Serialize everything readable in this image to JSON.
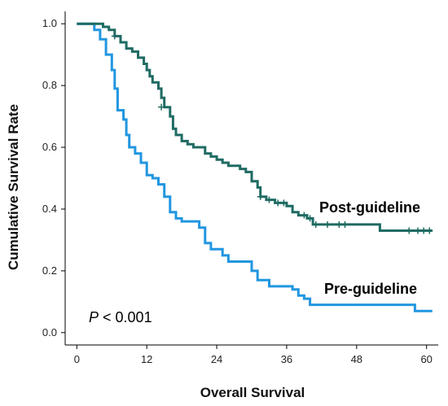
{
  "chart_data": {
    "type": "line",
    "step": true,
    "xlabel": "Overall Survival",
    "ylabel": "Cumulative Survival Rate",
    "xlim": [
      -2,
      62
    ],
    "ylim": [
      -0.04,
      1.04
    ],
    "xticks": [
      0,
      12,
      24,
      36,
      48,
      60
    ],
    "yticks": [
      0.0,
      0.2,
      0.4,
      0.6,
      0.8,
      1.0
    ],
    "grid": false,
    "annotation": {
      "prefix": "P",
      "rest": " < 0.001"
    },
    "series": [
      {
        "name": "Post-guideline",
        "color": "#1f6b63",
        "points": [
          [
            0,
            1.0
          ],
          [
            4.5,
            1.0
          ],
          [
            4.5,
            0.99
          ],
          [
            5.5,
            0.99
          ],
          [
            5.5,
            0.98
          ],
          [
            6.5,
            0.98
          ],
          [
            6.5,
            0.96
          ],
          [
            7.5,
            0.96
          ],
          [
            7.5,
            0.94
          ],
          [
            8.5,
            0.94
          ],
          [
            8.5,
            0.92
          ],
          [
            9.5,
            0.92
          ],
          [
            9.5,
            0.91
          ],
          [
            10.5,
            0.91
          ],
          [
            10.5,
            0.89
          ],
          [
            11.5,
            0.89
          ],
          [
            11.5,
            0.87
          ],
          [
            12.0,
            0.87
          ],
          [
            12.0,
            0.85
          ],
          [
            12.5,
            0.85
          ],
          [
            12.5,
            0.83
          ],
          [
            13.0,
            0.83
          ],
          [
            13.0,
            0.81
          ],
          [
            14.0,
            0.81
          ],
          [
            14.0,
            0.79
          ],
          [
            14.5,
            0.79
          ],
          [
            14.5,
            0.76
          ],
          [
            15.0,
            0.76
          ],
          [
            15.0,
            0.73
          ],
          [
            16.0,
            0.73
          ],
          [
            16.0,
            0.7
          ],
          [
            16.5,
            0.7
          ],
          [
            16.5,
            0.66
          ],
          [
            17.0,
            0.66
          ],
          [
            17.0,
            0.64
          ],
          [
            18.0,
            0.64
          ],
          [
            18.0,
            0.62
          ],
          [
            19.0,
            0.62
          ],
          [
            19.0,
            0.61
          ],
          [
            20.0,
            0.61
          ],
          [
            20.0,
            0.6
          ],
          [
            22.0,
            0.6
          ],
          [
            22.0,
            0.58
          ],
          [
            23.0,
            0.58
          ],
          [
            23.0,
            0.57
          ],
          [
            24.0,
            0.57
          ],
          [
            24.0,
            0.56
          ],
          [
            25.0,
            0.56
          ],
          [
            25.0,
            0.55
          ],
          [
            26.0,
            0.55
          ],
          [
            26.0,
            0.54
          ],
          [
            28.0,
            0.54
          ],
          [
            28.0,
            0.53
          ],
          [
            29.0,
            0.53
          ],
          [
            29.0,
            0.52
          ],
          [
            30.0,
            0.52
          ],
          [
            30.0,
            0.49
          ],
          [
            31.0,
            0.49
          ],
          [
            31.0,
            0.47
          ],
          [
            31.5,
            0.47
          ],
          [
            31.5,
            0.44
          ],
          [
            32.5,
            0.44
          ],
          [
            32.5,
            0.43
          ],
          [
            34.0,
            0.43
          ],
          [
            34.0,
            0.42
          ],
          [
            36.0,
            0.42
          ],
          [
            36.0,
            0.41
          ],
          [
            37.0,
            0.41
          ],
          [
            37.0,
            0.39
          ],
          [
            38.0,
            0.39
          ],
          [
            38.0,
            0.38
          ],
          [
            39.5,
            0.38
          ],
          [
            39.5,
            0.37
          ],
          [
            40.5,
            0.37
          ],
          [
            40.5,
            0.35
          ],
          [
            52.0,
            0.35
          ],
          [
            52.0,
            0.33
          ],
          [
            61.0,
            0.33
          ]
        ],
        "censored": [
          [
            6.5,
            0.96
          ],
          [
            14.5,
            0.73
          ],
          [
            31.5,
            0.44
          ],
          [
            33.0,
            0.43
          ],
          [
            34.5,
            0.42
          ],
          [
            35.5,
            0.42
          ],
          [
            39.0,
            0.38
          ],
          [
            40.0,
            0.37
          ],
          [
            41.0,
            0.35
          ],
          [
            43.0,
            0.35
          ],
          [
            45.0,
            0.35
          ],
          [
            46.0,
            0.35
          ],
          [
            57.0,
            0.33
          ],
          [
            58.5,
            0.33
          ],
          [
            59.5,
            0.33
          ],
          [
            60.5,
            0.33
          ]
        ]
      },
      {
        "name": "Pre-guideline",
        "color": "#2196e0",
        "points": [
          [
            0,
            1.0
          ],
          [
            3.0,
            1.0
          ],
          [
            3.0,
            0.98
          ],
          [
            4.0,
            0.98
          ],
          [
            4.0,
            0.95
          ],
          [
            5.0,
            0.95
          ],
          [
            5.0,
            0.9
          ],
          [
            6.0,
            0.9
          ],
          [
            6.0,
            0.85
          ],
          [
            6.5,
            0.85
          ],
          [
            6.5,
            0.79
          ],
          [
            7.0,
            0.79
          ],
          [
            7.0,
            0.72
          ],
          [
            8.0,
            0.72
          ],
          [
            8.0,
            0.69
          ],
          [
            8.5,
            0.69
          ],
          [
            8.5,
            0.64
          ],
          [
            9.0,
            0.64
          ],
          [
            9.0,
            0.6
          ],
          [
            10.0,
            0.6
          ],
          [
            10.0,
            0.58
          ],
          [
            11.0,
            0.58
          ],
          [
            11.0,
            0.55
          ],
          [
            12.0,
            0.55
          ],
          [
            12.0,
            0.51
          ],
          [
            13.0,
            0.51
          ],
          [
            13.0,
            0.5
          ],
          [
            14.0,
            0.5
          ],
          [
            14.0,
            0.48
          ],
          [
            15.0,
            0.48
          ],
          [
            15.0,
            0.44
          ],
          [
            16.0,
            0.44
          ],
          [
            16.0,
            0.39
          ],
          [
            17.0,
            0.39
          ],
          [
            17.0,
            0.37
          ],
          [
            18.0,
            0.37
          ],
          [
            18.0,
            0.36
          ],
          [
            21.0,
            0.36
          ],
          [
            21.0,
            0.34
          ],
          [
            22.0,
            0.34
          ],
          [
            22.0,
            0.29
          ],
          [
            23.0,
            0.29
          ],
          [
            23.0,
            0.27
          ],
          [
            25.0,
            0.27
          ],
          [
            25.0,
            0.25
          ],
          [
            26.0,
            0.25
          ],
          [
            26.0,
            0.23
          ],
          [
            30.0,
            0.23
          ],
          [
            30.0,
            0.2
          ],
          [
            31.0,
            0.2
          ],
          [
            31.0,
            0.17
          ],
          [
            33.0,
            0.17
          ],
          [
            33.0,
            0.15
          ],
          [
            37.0,
            0.15
          ],
          [
            37.0,
            0.14
          ],
          [
            38.0,
            0.14
          ],
          [
            38.0,
            0.12
          ],
          [
            39.0,
            0.12
          ],
          [
            39.0,
            0.11
          ],
          [
            40.0,
            0.11
          ],
          [
            40.0,
            0.09
          ],
          [
            58.0,
            0.09
          ],
          [
            58.0,
            0.07
          ],
          [
            61.0,
            0.07
          ]
        ],
        "censored": []
      }
    ]
  }
}
